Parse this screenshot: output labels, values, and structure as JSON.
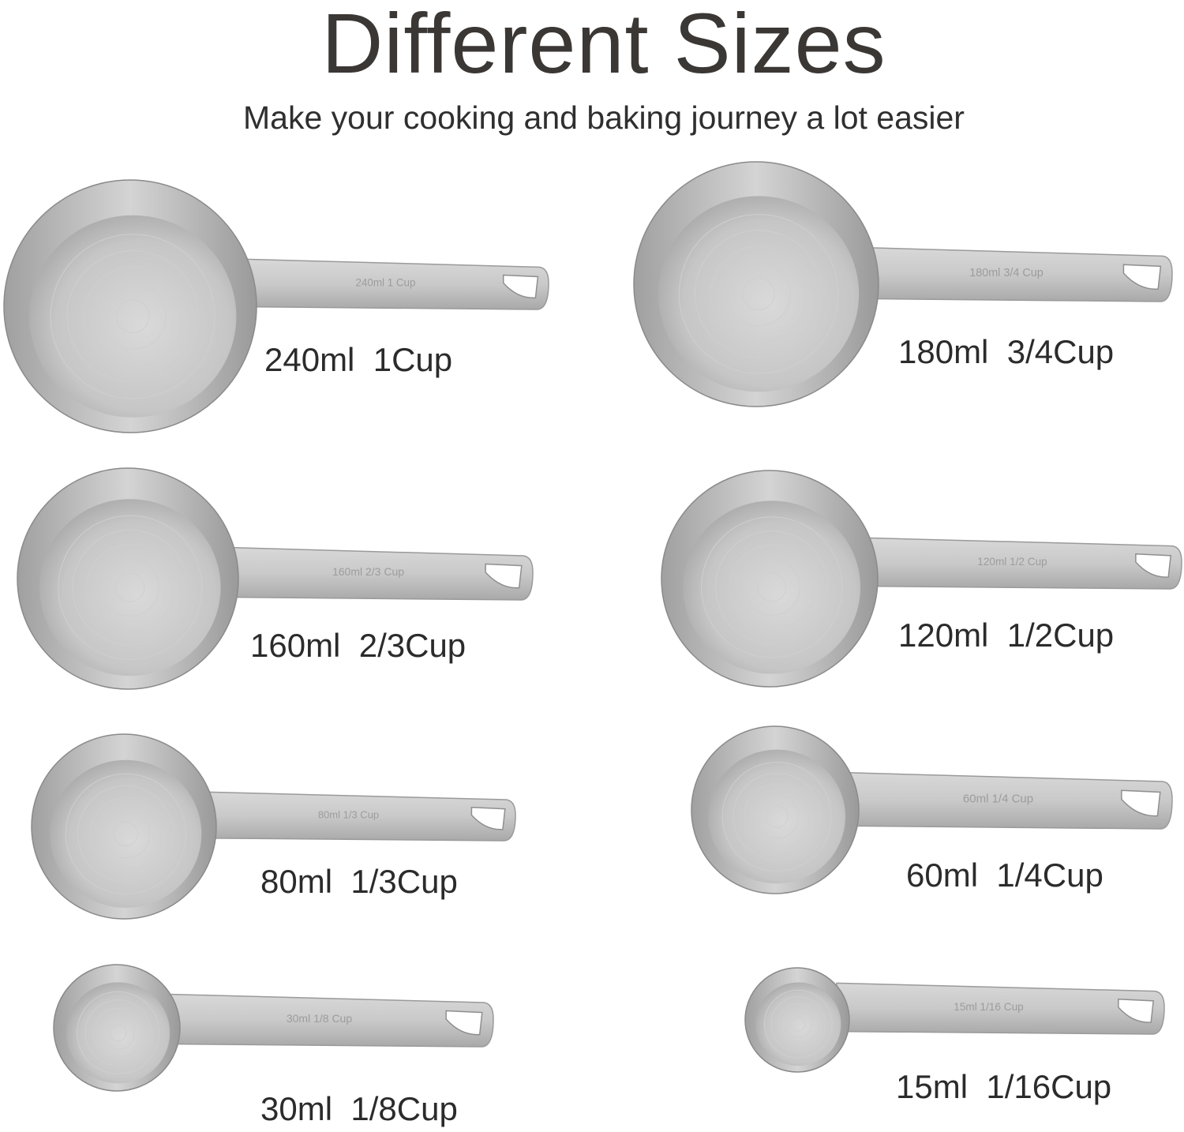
{
  "header": {
    "title": "Different Sizes",
    "subtitle": "Make your cooking and baking journey a lot easier"
  },
  "cups": [
    {
      "label": "240ml  1Cup",
      "engraving": "240ml 1 Cup"
    },
    {
      "label": "180ml  3/4Cup",
      "engraving": "180ml 3/4 Cup"
    },
    {
      "label": "160ml  2/3Cup",
      "engraving": "160ml 2/3 Cup"
    },
    {
      "label": "120ml  1/2Cup",
      "engraving": "120ml 1/2 Cup"
    },
    {
      "label": "80ml  1/3Cup",
      "engraving": "80ml 1/3 Cup"
    },
    {
      "label": "60ml  1/4Cup",
      "engraving": "60ml 1/4 Cup"
    },
    {
      "label": "30ml  1/8Cup",
      "engraving": "30ml 1/8 Cup"
    },
    {
      "label": "15ml  1/16Cup",
      "engraving": "15ml 1/16 Cup"
    }
  ],
  "colors": {
    "steel_light": "#e6e6e6",
    "steel_mid": "#bdbdbd",
    "steel_dark": "#8c8c8c",
    "text": "#2b2b2b"
  }
}
